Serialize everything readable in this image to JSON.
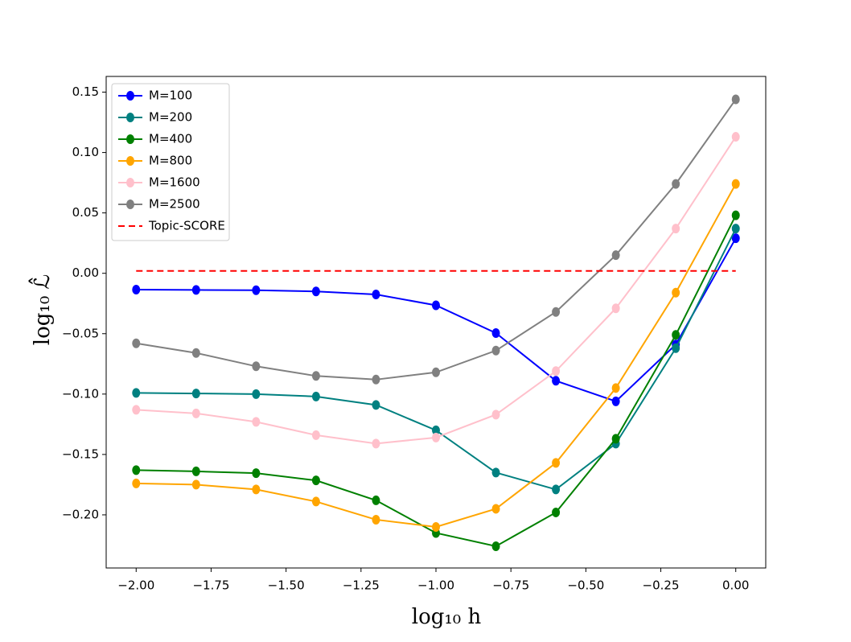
{
  "chart_data": {
    "type": "line",
    "x": [
      -2.0,
      -1.8,
      -1.6,
      -1.4,
      -1.2,
      -1.0,
      -0.8,
      -0.6,
      -0.4,
      -0.2,
      0.0
    ],
    "series": [
      {
        "name": "M=100",
        "color": "#0000ff",
        "values": [
          -0.0135,
          -0.0138,
          -0.014,
          -0.015,
          -0.0175,
          -0.0265,
          -0.0495,
          -0.089,
          -0.106,
          -0.059,
          0.029
        ]
      },
      {
        "name": "M=200",
        "color": "#008080",
        "values": [
          -0.099,
          -0.0995,
          -0.1,
          -0.102,
          -0.109,
          -0.13,
          -0.165,
          -0.179,
          -0.141,
          -0.062,
          0.037
        ]
      },
      {
        "name": "M=400",
        "color": "#008000",
        "values": [
          -0.163,
          -0.164,
          -0.1655,
          -0.1715,
          -0.188,
          -0.215,
          -0.226,
          -0.198,
          -0.137,
          -0.051,
          0.048
        ]
      },
      {
        "name": "M=800",
        "color": "#ffa500",
        "values": [
          -0.174,
          -0.175,
          -0.179,
          -0.189,
          -0.204,
          -0.21,
          -0.195,
          -0.157,
          -0.095,
          -0.016,
          0.074
        ]
      },
      {
        "name": "M=1600",
        "color": "#ffc0cb",
        "values": [
          -0.113,
          -0.116,
          -0.123,
          -0.134,
          -0.141,
          -0.136,
          -0.117,
          -0.081,
          -0.029,
          0.037,
          0.113
        ]
      },
      {
        "name": "M=2500",
        "color": "#808080",
        "values": [
          -0.058,
          -0.066,
          -0.077,
          -0.085,
          -0.088,
          -0.082,
          -0.064,
          -0.032,
          0.015,
          0.074,
          0.144
        ]
      },
      {
        "name": "Topic-SCORE",
        "color": "#ff0000",
        "dashed": true,
        "x": [
          -2.0,
          0.0
        ],
        "values": [
          0.002,
          0.002
        ]
      }
    ],
    "xlabel": "log₁₀ h",
    "ylabel": "log₁₀ ℒ̂",
    "xlim": [
      -2.1,
      0.1
    ],
    "ylim": [
      -0.244,
      0.163
    ],
    "xticks": [
      {
        "value": -2.0,
        "label": "−2.00"
      },
      {
        "value": -1.75,
        "label": "−1.75"
      },
      {
        "value": -1.5,
        "label": "−1.50"
      },
      {
        "value": -1.25,
        "label": "−1.25"
      },
      {
        "value": -1.0,
        "label": "−1.00"
      },
      {
        "value": -0.75,
        "label": "−0.75"
      },
      {
        "value": -0.5,
        "label": "−0.50"
      },
      {
        "value": -0.25,
        "label": "−0.25"
      },
      {
        "value": 0.0,
        "label": "0.00"
      }
    ],
    "yticks": [
      {
        "value": -0.2,
        "label": "−0.20"
      },
      {
        "value": -0.15,
        "label": "−0.15"
      },
      {
        "value": -0.1,
        "label": "−0.10"
      },
      {
        "value": -0.05,
        "label": "−0.05"
      },
      {
        "value": 0.0,
        "label": "0.00"
      },
      {
        "value": 0.05,
        "label": "0.05"
      },
      {
        "value": 0.1,
        "label": "0.10"
      },
      {
        "value": 0.15,
        "label": "0.15"
      }
    ],
    "legend": "upper left",
    "grid": false
  }
}
